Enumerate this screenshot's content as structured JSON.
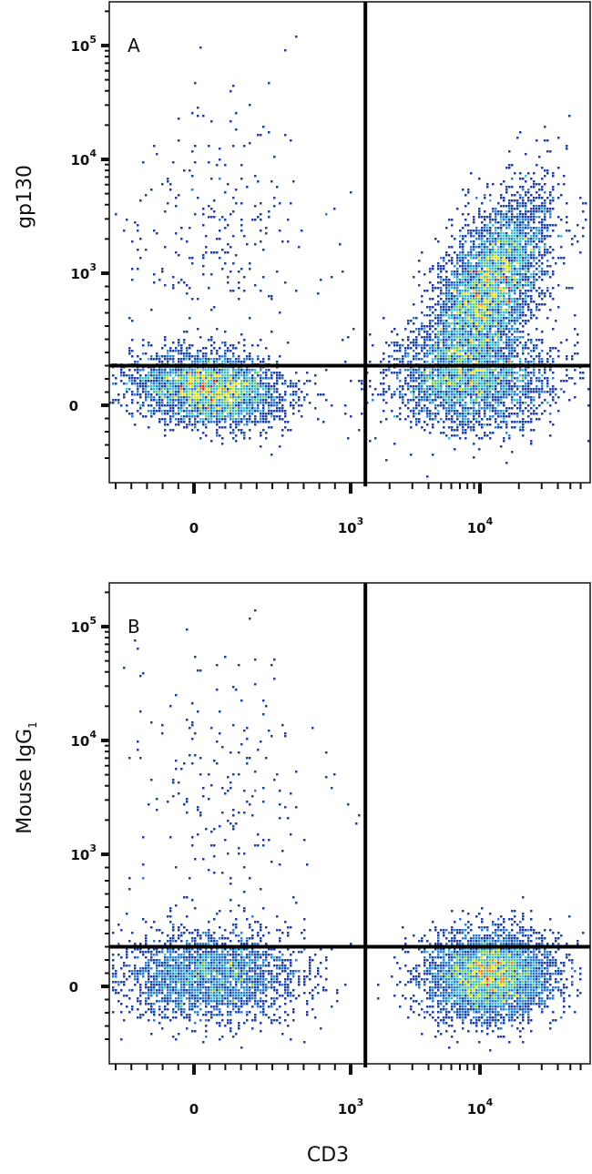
{
  "chart_data": [
    {
      "type": "scatter",
      "subtype": "flow-cytometry-pseudocolor-density",
      "panel_label": "A",
      "xlabel": "CD3",
      "ylabel": "gp130",
      "x_scale": "biexponential",
      "y_scale": "biexponential",
      "x_ticks": [
        {
          "value": 0,
          "base": "0",
          "exp": ""
        },
        {
          "value": 1000,
          "base": "10",
          "exp": "3"
        },
        {
          "value": 10000,
          "base": "10",
          "exp": "4"
        }
      ],
      "y_ticks": [
        {
          "value": 0,
          "base": "0",
          "exp": ""
        },
        {
          "value": 1000,
          "base": "10",
          "exp": "3"
        },
        {
          "value": 10000,
          "base": "10",
          "exp": "4"
        },
        {
          "value": 100000,
          "base": "10",
          "exp": "5"
        }
      ],
      "quadrant_gate": {
        "x": 1300,
        "y": 300
      },
      "populations": [
        {
          "quadrant": "lower-left",
          "x_center": 100,
          "y_center": 120,
          "density": "high"
        },
        {
          "quadrant": "upper-right",
          "x_center": 12000,
          "y_center": 900,
          "density": "highest"
        },
        {
          "quadrant": "lower-right",
          "x_center": 9000,
          "y_center": 200,
          "density": "medium"
        },
        {
          "quadrant": "upper-left",
          "x_center": 150,
          "y_center": 2500,
          "density": "sparse"
        }
      ],
      "colormap": [
        "#1f3fa0",
        "#2a7fd0",
        "#3fc0d0",
        "#7fd040",
        "#f0e020",
        "#f08020",
        "#e02020"
      ]
    },
    {
      "type": "scatter",
      "subtype": "flow-cytometry-pseudocolor-density",
      "panel_label": "B",
      "xlabel": "CD3",
      "ylabel_main": "Mouse IgG",
      "ylabel_sub": "1",
      "x_scale": "biexponential",
      "y_scale": "biexponential",
      "x_ticks": [
        {
          "value": 0,
          "base": "0",
          "exp": ""
        },
        {
          "value": 1000,
          "base": "10",
          "exp": "3"
        },
        {
          "value": 10000,
          "base": "10",
          "exp": "4"
        }
      ],
      "y_ticks": [
        {
          "value": 0,
          "base": "0",
          "exp": ""
        },
        {
          "value": 1000,
          "base": "10",
          "exp": "3"
        },
        {
          "value": 10000,
          "base": "10",
          "exp": "4"
        },
        {
          "value": 100000,
          "base": "10",
          "exp": "5"
        }
      ],
      "quadrant_gate": {
        "x": 1300,
        "y": 300
      },
      "populations": [
        {
          "quadrant": "lower-left",
          "x_center": 100,
          "y_center": 80,
          "density": "medium"
        },
        {
          "quadrant": "lower-right",
          "x_center": 12000,
          "y_center": 80,
          "density": "highest"
        },
        {
          "quadrant": "upper-left",
          "x_center": 150,
          "y_center": 3000,
          "density": "sparse"
        }
      ],
      "colormap": [
        "#1f3fa0",
        "#2a7fd0",
        "#3fc0d0",
        "#7fd040",
        "#f0e020",
        "#f08020",
        "#e02020"
      ]
    }
  ]
}
